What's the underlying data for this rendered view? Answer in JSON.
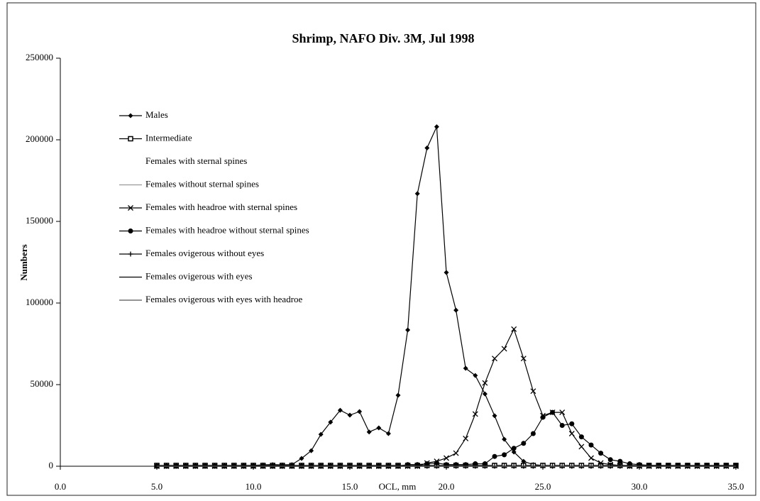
{
  "chart_data": {
    "type": "line",
    "title": "Shrimp, NAFO Div. 3M, Jul 1998",
    "x_label": "OCL, mm",
    "y_label": "Numbers",
    "xlim": [
      0,
      35
    ],
    "ylim": [
      0,
      250000
    ],
    "xticks": [
      {
        "value": 0,
        "label": "0.0"
      },
      {
        "value": 5,
        "label": "5.0"
      },
      {
        "value": 10,
        "label": "10.0"
      },
      {
        "value": 15,
        "label": "15.0"
      },
      {
        "value": 20,
        "label": "20.0"
      },
      {
        "value": 25,
        "label": "25.0"
      },
      {
        "value": 30,
        "label": "30.0"
      },
      {
        "value": 35,
        "label": "35.0"
      }
    ],
    "yticks": [
      0,
      50000,
      100000,
      150000,
      200000,
      250000
    ],
    "grid": false,
    "legend": "top-left",
    "x": [
      5,
      5.5,
      6,
      6.5,
      7,
      7.5,
      8,
      8.5,
      9,
      9.5,
      10,
      10.5,
      11,
      11.5,
      12,
      12.5,
      13,
      13.5,
      14,
      14.5,
      15,
      15.5,
      16,
      16.5,
      17,
      17.5,
      18,
      18.5,
      19,
      19.5,
      20,
      20.5,
      21,
      21.5,
      22,
      22.5,
      23,
      23.5,
      24,
      24.5,
      25,
      25.5,
      26,
      26.5,
      27,
      27.5,
      28,
      28.5,
      29,
      29.5,
      30,
      30.5,
      31,
      31.5,
      32,
      32.5,
      33,
      33.5,
      34,
      34.5,
      35
    ],
    "series": [
      {
        "name": "Males",
        "color": "#000000",
        "marker": "diamond",
        "values": [
          0,
          0,
          0,
          0,
          0,
          0,
          0,
          0,
          0,
          300,
          500,
          800,
          1000,
          800,
          1000,
          4800,
          9500,
          19500,
          27000,
          34300,
          31300,
          33500,
          21000,
          23500,
          20000,
          43500,
          83500,
          167000,
          195000,
          208000,
          118700,
          95600,
          60000,
          55600,
          44300,
          30900,
          16500,
          8700,
          3000,
          1000,
          500,
          300,
          200,
          0,
          0,
          0,
          0,
          0,
          0,
          0,
          0,
          0,
          0,
          0,
          0,
          0,
          0,
          0,
          0,
          0,
          0
        ]
      },
      {
        "name": "Intermediate",
        "color": "#000000",
        "marker": "square",
        "values": [
          500,
          500,
          500,
          500,
          500,
          500,
          500,
          500,
          500,
          500,
          500,
          500,
          500,
          500,
          500,
          500,
          500,
          500,
          500,
          500,
          500,
          500,
          500,
          500,
          500,
          500,
          500,
          500,
          500,
          500,
          500,
          500,
          500,
          500,
          500,
          500,
          500,
          500,
          500,
          500,
          500,
          500,
          500,
          500,
          500,
          500,
          500,
          500,
          500,
          500,
          500,
          500,
          500,
          500,
          500,
          500,
          500,
          500,
          500,
          500,
          500
        ]
      },
      {
        "name": "Females with sternal spines",
        "color": "#ffffff",
        "marker": "none",
        "values": [
          0,
          0,
          0,
          0,
          0,
          0,
          0,
          0,
          0,
          0,
          0,
          0,
          0,
          0,
          0,
          0,
          0,
          0,
          0,
          0,
          0,
          0,
          0,
          0,
          0,
          0,
          0,
          0,
          0,
          0,
          0,
          0,
          0,
          0,
          0,
          0,
          0,
          0,
          0,
          0,
          0,
          0,
          0,
          0,
          0,
          0,
          0,
          0,
          0,
          0,
          0,
          0,
          0,
          0,
          0,
          0,
          0,
          0,
          0,
          0,
          0
        ]
      },
      {
        "name": "Females without sternal spines",
        "color": "#999999",
        "marker": "none",
        "values": [
          0,
          0,
          0,
          0,
          0,
          0,
          0,
          0,
          0,
          0,
          0,
          0,
          0,
          0,
          0,
          0,
          0,
          0,
          0,
          0,
          0,
          0,
          0,
          0,
          0,
          0,
          0,
          0,
          0,
          0,
          0,
          0,
          0,
          0,
          0,
          0,
          0,
          0,
          0,
          0,
          0,
          0,
          0,
          0,
          0,
          0,
          0,
          0,
          0,
          0,
          0,
          0,
          0,
          0,
          0,
          0,
          0,
          0,
          0,
          0,
          0
        ]
      },
      {
        "name": "Females with headroe with sternal spines",
        "color": "#000000",
        "marker": "x",
        "values": [
          0,
          0,
          0,
          0,
          0,
          0,
          0,
          0,
          0,
          0,
          0,
          0,
          0,
          0,
          0,
          0,
          0,
          0,
          0,
          0,
          0,
          0,
          0,
          0,
          0,
          0,
          0,
          0,
          2000,
          3000,
          5000,
          8000,
          17000,
          32000,
          51000,
          66000,
          72000,
          84000,
          66000,
          46000,
          31000,
          33000,
          33000,
          20000,
          12000,
          5000,
          2000,
          1000,
          500,
          0,
          0,
          0,
          0,
          0,
          0,
          0,
          0,
          0,
          0,
          0,
          0
        ]
      },
      {
        "name": "Females with headroe without sternal spines",
        "color": "#000000",
        "marker": "circle",
        "values": [
          0,
          0,
          0,
          0,
          0,
          0,
          0,
          0,
          0,
          0,
          0,
          0,
          0,
          0,
          0,
          0,
          0,
          0,
          0,
          0,
          0,
          0,
          0,
          0,
          0,
          0,
          1000,
          1000,
          1500,
          2000,
          1000,
          1000,
          1000,
          1500,
          1500,
          6000,
          7000,
          11000,
          14000,
          20000,
          30000,
          33000,
          25000,
          26000,
          18000,
          13000,
          8000,
          4000,
          3000,
          1500,
          1000,
          500,
          500,
          300,
          300,
          300,
          300,
          300,
          300,
          300,
          300
        ]
      },
      {
        "name": "Females ovigerous without eyes",
        "color": "#000000",
        "marker": "plus",
        "values": [
          0,
          0,
          0,
          0,
          0,
          0,
          0,
          0,
          0,
          0,
          0,
          0,
          0,
          0,
          0,
          0,
          0,
          0,
          0,
          0,
          0,
          0,
          0,
          0,
          0,
          0,
          0,
          0,
          0,
          0,
          0,
          0,
          0,
          0,
          0,
          0,
          0,
          0,
          0,
          0,
          0,
          0,
          0,
          0,
          0,
          0,
          0,
          0,
          0,
          0,
          0,
          0,
          0,
          0,
          0,
          0,
          0,
          0,
          0,
          0,
          0
        ]
      },
      {
        "name": "Females ovigerous with eyes",
        "color": "#000000",
        "marker": "none",
        "values": [
          0,
          0,
          0,
          0,
          0,
          0,
          0,
          0,
          0,
          0,
          0,
          0,
          0,
          0,
          0,
          0,
          0,
          0,
          0,
          0,
          0,
          0,
          0,
          0,
          0,
          0,
          0,
          0,
          0,
          0,
          0,
          0,
          0,
          0,
          0,
          0,
          0,
          0,
          0,
          0,
          0,
          0,
          0,
          0,
          0,
          0,
          0,
          0,
          0,
          0,
          0,
          0,
          0,
          0,
          0,
          0,
          0,
          0,
          0,
          0,
          0
        ]
      },
      {
        "name": "Females ovigerous with eyes with headroe",
        "color": "#555555",
        "marker": "none",
        "values": [
          0,
          0,
          0,
          0,
          0,
          0,
          0,
          0,
          0,
          0,
          0,
          0,
          0,
          0,
          0,
          0,
          0,
          0,
          0,
          0,
          0,
          0,
          0,
          0,
          0,
          0,
          0,
          0,
          0,
          0,
          0,
          0,
          0,
          0,
          0,
          0,
          0,
          0,
          0,
          0,
          0,
          0,
          0,
          0,
          0,
          0,
          0,
          0,
          0,
          0,
          0,
          0,
          0,
          0,
          0,
          0,
          0,
          0,
          0,
          0,
          0
        ]
      }
    ]
  }
}
